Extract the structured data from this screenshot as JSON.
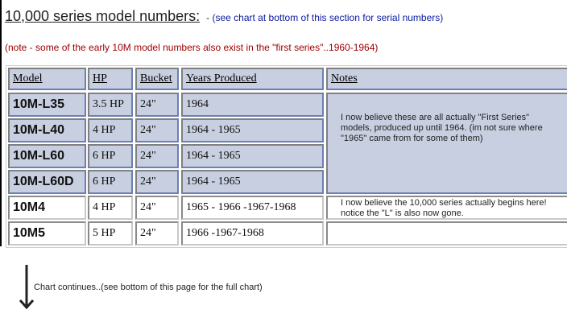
{
  "heading": {
    "title": "10,000 series model numbers:",
    "dash": "-",
    "subtitle": "(see chart at bottom of this section for serial numbers)",
    "note": "(note - some of the early 10M model numbers also exist in the \"first series\"..1960-1964)"
  },
  "table": {
    "headers": [
      "Model",
      "HP",
      "Bucket",
      "Years Produced",
      "Notes"
    ],
    "rows": [
      {
        "model": "10M-L35",
        "hp": "3.5 HP",
        "bucket": "24\"",
        "years": "1964"
      },
      {
        "model": "10M-L40",
        "hp": "4 HP",
        "bucket": "24\"",
        "years": "1964 - 1965"
      },
      {
        "model": "10M-L60",
        "hp": "6 HP",
        "bucket": "24\"",
        "years": "1964 - 1965"
      },
      {
        "model": "10M-L60D",
        "hp": "6 HP",
        "bucket": "24\"",
        "years": "1964 - 1965"
      },
      {
        "model": "10M4",
        "hp": "4 HP",
        "bucket": "24\"",
        "years": "1965 - 1966 -1967-1968"
      },
      {
        "model": "10M5",
        "hp": "5 HP",
        "bucket": "24\"",
        "years": "1966 -1967-1968"
      }
    ],
    "notes": [
      "I now believe these are all actually \"First Series\" models, produced up until 1964. (im not sure where \"1965\" came from for some of them)",
      "I now believe the 10,000 series actually begins here! notice the \"L\" is also now gone.",
      ""
    ],
    "colors": {
      "highlight": "#c8cfe0",
      "plain": "#ffffff"
    }
  },
  "footer": {
    "arrow_icon": "down-arrow-icon",
    "text": "Chart continues..(see bottom of this page for the full chart)"
  }
}
